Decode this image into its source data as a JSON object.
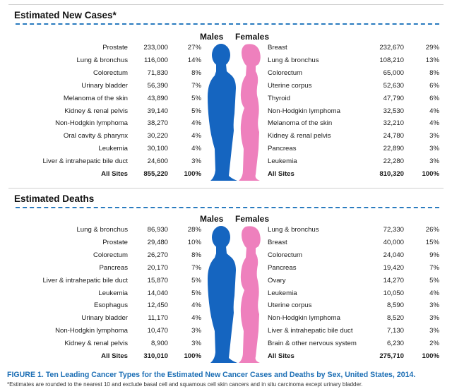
{
  "colors": {
    "male": "#1565c0",
    "female": "#ee80bd",
    "divider": "#2a7bbf",
    "caption": "#1d6fb5"
  },
  "headers": {
    "males": "Males",
    "females": "Females"
  },
  "caption": "FIGURE 1. Ten Leading Cancer Types for the Estimated New Cancer Cases and Deaths by Sex, United States, 2014.",
  "footnote": "*Estimates are rounded to the nearest 10 and exclude basal cell and squamous cell skin cancers and in situ carcinoma except urinary bladder.",
  "chart_data": [
    {
      "type": "table",
      "title": "Estimated New Cases*",
      "males": [
        {
          "site": "Prostate",
          "count": "233,000",
          "pct": "27%"
        },
        {
          "site": "Lung & bronchus",
          "count": "116,000",
          "pct": "14%"
        },
        {
          "site": "Colorectum",
          "count": "71,830",
          "pct": "8%"
        },
        {
          "site": "Urinary bladder",
          "count": "56,390",
          "pct": "7%"
        },
        {
          "site": "Melanoma of the skin",
          "count": "43,890",
          "pct": "5%"
        },
        {
          "site": "Kidney & renal pelvis",
          "count": "39,140",
          "pct": "5%"
        },
        {
          "site": "Non-Hodgkin lymphoma",
          "count": "38,270",
          "pct": "4%"
        },
        {
          "site": "Oral cavity & pharynx",
          "count": "30,220",
          "pct": "4%"
        },
        {
          "site": "Leukemia",
          "count": "30,100",
          "pct": "4%"
        },
        {
          "site": "Liver & intrahepatic bile duct",
          "count": "24,600",
          "pct": "3%"
        }
      ],
      "males_total": {
        "site": "All Sites",
        "count": "855,220",
        "pct": "100%"
      },
      "females": [
        {
          "site": "Breast",
          "count": "232,670",
          "pct": "29%"
        },
        {
          "site": "Lung & bronchus",
          "count": "108,210",
          "pct": "13%"
        },
        {
          "site": "Colorectum",
          "count": "65,000",
          "pct": "8%"
        },
        {
          "site": "Uterine corpus",
          "count": "52,630",
          "pct": "6%"
        },
        {
          "site": "Thyroid",
          "count": "47,790",
          "pct": "6%"
        },
        {
          "site": "Non-Hodgkin lymphoma",
          "count": "32,530",
          "pct": "4%"
        },
        {
          "site": "Melanoma of the skin",
          "count": "32,210",
          "pct": "4%"
        },
        {
          "site": "Kidney & renal pelvis",
          "count": "24,780",
          "pct": "3%"
        },
        {
          "site": "Pancreas",
          "count": "22,890",
          "pct": "3%"
        },
        {
          "site": "Leukemia",
          "count": "22,280",
          "pct": "3%"
        }
      ],
      "females_total": {
        "site": "All Sites",
        "count": "810,320",
        "pct": "100%"
      }
    },
    {
      "type": "table",
      "title": "Estimated Deaths",
      "males": [
        {
          "site": "Lung & bronchus",
          "count": "86,930",
          "pct": "28%"
        },
        {
          "site": "Prostate",
          "count": "29,480",
          "pct": "10%"
        },
        {
          "site": "Colorectum",
          "count": "26,270",
          "pct": "8%"
        },
        {
          "site": "Pancreas",
          "count": "20,170",
          "pct": "7%"
        },
        {
          "site": "Liver & intrahepatic bile duct",
          "count": "15,870",
          "pct": "5%"
        },
        {
          "site": "Leukemia",
          "count": "14,040",
          "pct": "5%"
        },
        {
          "site": "Esophagus",
          "count": "12,450",
          "pct": "4%"
        },
        {
          "site": "Urinary bladder",
          "count": "11,170",
          "pct": "4%"
        },
        {
          "site": "Non-Hodgkin lymphoma",
          "count": "10,470",
          "pct": "3%"
        },
        {
          "site": "Kidney & renal pelvis",
          "count": "8,900",
          "pct": "3%"
        }
      ],
      "males_total": {
        "site": "All Sites",
        "count": "310,010",
        "pct": "100%"
      },
      "females": [
        {
          "site": "Lung & bronchus",
          "count": "72,330",
          "pct": "26%"
        },
        {
          "site": "Breast",
          "count": "40,000",
          "pct": "15%"
        },
        {
          "site": "Colorectum",
          "count": "24,040",
          "pct": "9%"
        },
        {
          "site": "Pancreas",
          "count": "19,420",
          "pct": "7%"
        },
        {
          "site": "Ovary",
          "count": "14,270",
          "pct": "5%"
        },
        {
          "site": "Leukemia",
          "count": "10,050",
          "pct": "4%"
        },
        {
          "site": "Uterine corpus",
          "count": "8,590",
          "pct": "3%"
        },
        {
          "site": "Non-Hodgkin lymphoma",
          "count": "8,520",
          "pct": "3%"
        },
        {
          "site": "Liver & intrahepatic bile duct",
          "count": "7,130",
          "pct": "3%"
        },
        {
          "site": "Brain & other nervous system",
          "count": "6,230",
          "pct": "2%"
        }
      ],
      "females_total": {
        "site": "All Sites",
        "count": "275,710",
        "pct": "100%"
      }
    }
  ]
}
